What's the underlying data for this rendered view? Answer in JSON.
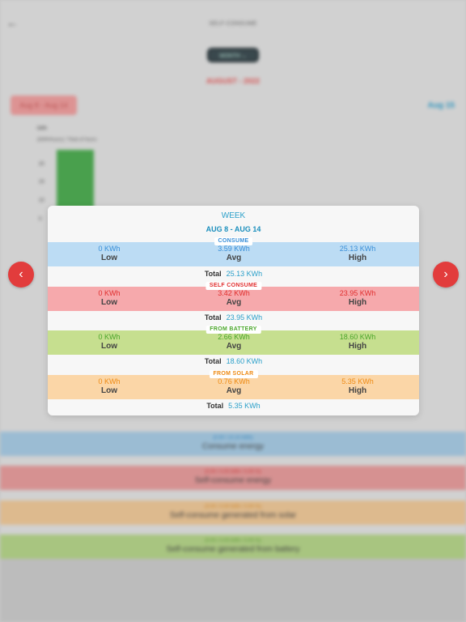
{
  "app": {
    "title": "SELF-CONSUME",
    "back_icon": "arrow-left-icon"
  },
  "background": {
    "period_selector": "MONTH",
    "month_label": "AUGUST - 2022",
    "range_chip": "Aug 8 - Aug 14",
    "next_range": "Aug 15",
    "chart_unit": "kWh",
    "chart_note": "(kWh/hours) / Total of hours",
    "ticks": [
      "20",
      "15",
      "10",
      "5"
    ],
    "legend": [
      {
        "sub": "(0.00 / 10.10 kWh)",
        "main": "Consume energy"
      },
      {
        "sub": "(0.00 / 0.00 kWh / 0.00 %)",
        "main": "Self-consume energy"
      },
      {
        "sub": "(0.00 / 0.00 kWh / 0.00 %)",
        "main": "Self-consume generated from solar"
      },
      {
        "sub": "(0.00 / 0.00 kWh / 0.00 %)",
        "main": "Self-consume generated from battery"
      }
    ]
  },
  "nav": {
    "prev_icon": "chevron-left-icon",
    "next_icon": "chevron-right-icon",
    "prev_glyph": "‹",
    "next_glyph": "›"
  },
  "modal": {
    "title": "WEEK",
    "range": "AUG 8 - AUG 14",
    "sections": {
      "consume": {
        "label": "CONSUME",
        "low_value": "0 KWh",
        "low_label": "Low",
        "avg_value": "3.59 KWh",
        "avg_label": "Avg",
        "high_value": "25.13 KWh",
        "high_label": "High",
        "total_label": "Total",
        "total_value": "25.13 KWh"
      },
      "self_consume": {
        "label": "SELF CONSUME",
        "low_value": "0 KWh",
        "low_label": "Low",
        "avg_value": "3.42 KWh",
        "avg_label": "Avg",
        "high_value": "23.95 KWh",
        "high_label": "High",
        "total_label": "Total",
        "total_value": "23.95 KWh"
      },
      "from_battery": {
        "label": "FROM BATTERY",
        "low_value": "0 KWh",
        "low_label": "Low",
        "avg_value": "2.66 KWh",
        "avg_label": "Avg",
        "high_value": "18.60 KWh",
        "high_label": "High",
        "total_label": "Total",
        "total_value": "18.60 KWh"
      },
      "from_solar": {
        "label": "FROM SOLAR",
        "low_value": "0 KWh",
        "low_label": "Low",
        "avg_value": "0.76 KWh",
        "avg_label": "Avg",
        "high_value": "5.35 KWh",
        "high_label": "High",
        "total_label": "Total",
        "total_value": "5.35 KWh"
      }
    }
  }
}
